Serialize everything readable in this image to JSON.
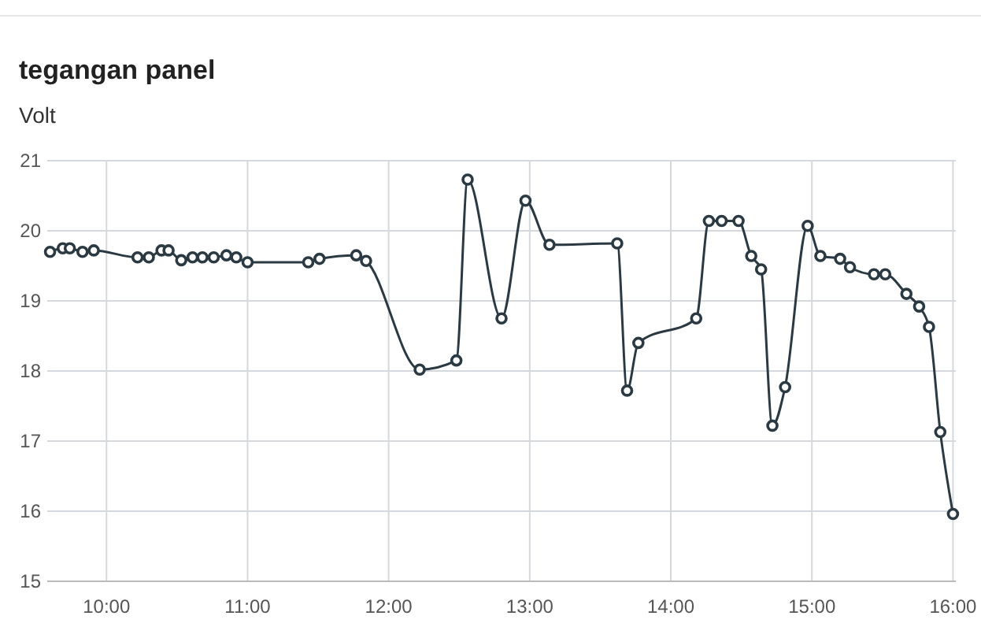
{
  "chart_data": {
    "type": "line",
    "title": "tegangan panel",
    "subtitle": "Volt",
    "xlim": [
      9.58,
      16.02
    ],
    "xticks": [
      {
        "value": 10,
        "label": "10:00"
      },
      {
        "value": 11,
        "label": "11:00"
      },
      {
        "value": 12,
        "label": "12:00"
      },
      {
        "value": 13,
        "label": "13:00"
      },
      {
        "value": 14,
        "label": "14:00"
      },
      {
        "value": 15,
        "label": "15:00"
      },
      {
        "value": 16,
        "label": "16:00"
      }
    ],
    "ylim": [
      15,
      21
    ],
    "yticks": [
      15,
      16,
      17,
      18,
      19,
      20,
      21
    ],
    "grid": true,
    "marker": "circle",
    "line_style": "solid",
    "series": [
      {
        "color": "#2b3a42",
        "x": [
          9.6,
          9.69,
          9.74,
          9.83,
          9.91,
          10.22,
          10.3,
          10.39,
          10.44,
          10.53,
          10.61,
          10.68,
          10.76,
          10.85,
          10.92,
          11.0,
          11.43,
          11.51,
          11.77,
          11.84,
          12.22,
          12.48,
          12.56,
          12.8,
          12.97,
          13.14,
          13.62,
          13.69,
          13.77,
          14.18,
          14.27,
          14.36,
          14.48,
          14.57,
          14.64,
          14.72,
          14.81,
          14.97,
          15.06,
          15.2,
          15.27,
          15.44,
          15.52,
          15.67,
          15.76,
          15.83,
          15.91,
          16.0
        ],
        "values": [
          19.7,
          19.75,
          19.75,
          19.7,
          19.72,
          19.62,
          19.62,
          19.72,
          19.72,
          19.58,
          19.62,
          19.62,
          19.62,
          19.65,
          19.62,
          19.55,
          19.55,
          19.6,
          19.65,
          19.57,
          18.02,
          18.15,
          20.73,
          18.75,
          20.43,
          19.8,
          19.82,
          17.72,
          18.4,
          18.75,
          20.14,
          20.14,
          20.14,
          19.64,
          19.45,
          17.22,
          17.77,
          20.07,
          19.64,
          19.6,
          19.48,
          19.38,
          19.38,
          19.1,
          18.92,
          18.63,
          17.13,
          15.96
        ]
      }
    ]
  }
}
